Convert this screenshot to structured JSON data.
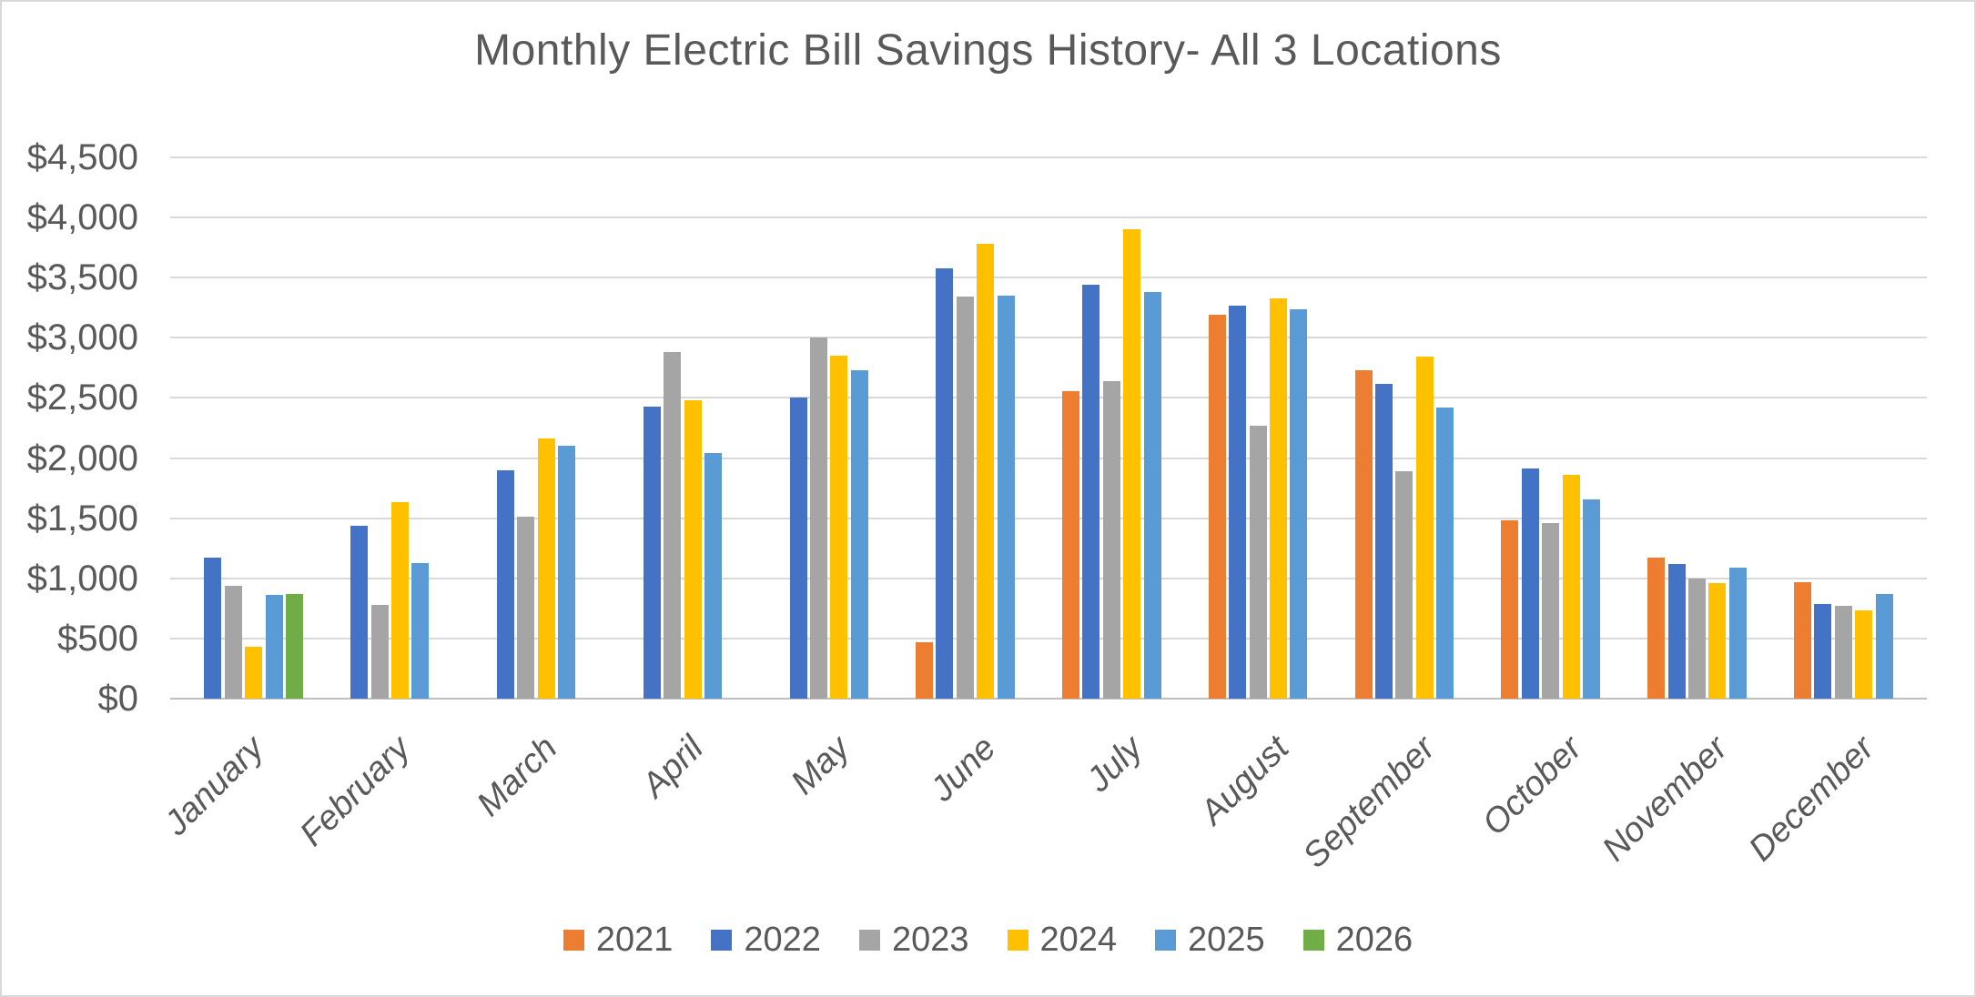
{
  "title": "Monthly Electric Bill Savings History- All 3 Locations",
  "chart_data": {
    "type": "bar",
    "title": "Monthly Electric Bill Savings History- All 3 Locations",
    "categories": [
      "January",
      "February",
      "March",
      "April",
      "May",
      "June",
      "July",
      "August",
      "September",
      "October",
      "November",
      "December"
    ],
    "series": [
      {
        "name": "2021",
        "color": "#ED7D31",
        "values": [
          null,
          null,
          null,
          null,
          null,
          470,
          2560,
          3190,
          2730,
          1480,
          1170,
          970
        ]
      },
      {
        "name": "2022",
        "color": "#4472C4",
        "values": [
          1170,
          1440,
          1900,
          2430,
          2500,
          3580,
          3440,
          3270,
          2620,
          1910,
          1120,
          790
        ]
      },
      {
        "name": "2023",
        "color": "#A5A5A5",
        "values": [
          940,
          780,
          1510,
          2880,
          3000,
          3340,
          2640,
          2270,
          1890,
          1460,
          1000,
          770
        ]
      },
      {
        "name": "2024",
        "color": "#FFC000",
        "values": [
          430,
          1630,
          2160,
          2480,
          2850,
          3780,
          3900,
          3330,
          2840,
          1860,
          960,
          730
        ]
      },
      {
        "name": "2025",
        "color": "#5B9BD5",
        "values": [
          860,
          1130,
          2100,
          2040,
          2730,
          3350,
          3380,
          3240,
          2420,
          1660,
          1090,
          870
        ]
      },
      {
        "name": "2026",
        "color": "#70AD47",
        "values": [
          870,
          null,
          null,
          null,
          null,
          null,
          null,
          null,
          null,
          null,
          null,
          null
        ]
      }
    ],
    "y_axis": {
      "min": 0,
      "max": 4500,
      "step": 500,
      "tick_labels": [
        "$0",
        "$500",
        "$1,000",
        "$1,500",
        "$2,000",
        "$2,500",
        "$3,000",
        "$3,500",
        "$4,000",
        "$4,500"
      ]
    },
    "xlabel": "",
    "ylabel": "",
    "grid": true,
    "legend_position": "bottom"
  },
  "colors": {
    "grid": "#D9D9D9",
    "axis_line": "#BFBFBF",
    "text": "#595959",
    "background": "#FFFFFF",
    "border": "#D9D9D9"
  }
}
